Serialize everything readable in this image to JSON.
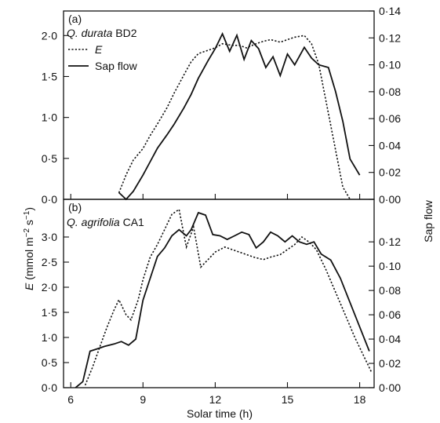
{
  "chart_data": [
    {
      "type": "line",
      "panel_label": "(a)",
      "site_label": "BD2",
      "species_label": "Q. durata",
      "legend": [
        "E",
        "Sap flow"
      ],
      "xlim": [
        5.7,
        18.6
      ],
      "ylim_left": [
        0,
        2.3
      ],
      "ylim_right": [
        0,
        0.14
      ],
      "left_ticks": [
        "0·0",
        "0·5",
        "1·0",
        "1·5",
        "2·0"
      ],
      "left_tick_values": [
        0,
        0.5,
        1.0,
        1.5,
        2.0
      ],
      "right_ticks": [
        "0·00",
        "0·02",
        "0·04",
        "0·06",
        "0·08",
        "0·10",
        "0·12",
        "0·14"
      ],
      "right_tick_values": [
        0,
        0.02,
        0.04,
        0.06,
        0.08,
        0.1,
        0.12,
        0.14
      ],
      "series": [
        {
          "name": "E",
          "axis": "left",
          "style": "dotted",
          "x": [
            8.0,
            8.3,
            8.6,
            9.0,
            9.3,
            9.6,
            10.0,
            10.3,
            10.7,
            11.0,
            11.3,
            11.7,
            12.0,
            12.3,
            12.7,
            13.0,
            13.3,
            13.7,
            14.0,
            14.3,
            14.7,
            15.0,
            15.3,
            15.7,
            16.0,
            16.3,
            16.7,
            17.0,
            17.3,
            17.6
          ],
          "y": [
            0.08,
            0.3,
            0.48,
            0.62,
            0.78,
            0.92,
            1.12,
            1.3,
            1.52,
            1.68,
            1.78,
            1.82,
            1.85,
            1.9,
            1.88,
            1.88,
            1.85,
            1.9,
            1.93,
            1.95,
            1.92,
            1.95,
            1.98,
            2.0,
            1.9,
            1.65,
            1.05,
            0.6,
            0.15,
            0.0
          ]
        },
        {
          "name": "Sap flow",
          "axis": "right",
          "style": "solid",
          "x": [
            8.0,
            8.3,
            8.6,
            9.0,
            9.3,
            9.6,
            10.0,
            10.3,
            10.7,
            11.0,
            11.3,
            11.7,
            12.0,
            12.3,
            12.6,
            12.9,
            13.2,
            13.5,
            13.8,
            14.1,
            14.4,
            14.7,
            15.0,
            15.3,
            15.7,
            16.0,
            16.3,
            16.7,
            17.0,
            17.3,
            17.6,
            18.0
          ],
          "y": [
            0.005,
            0.0,
            0.006,
            0.018,
            0.028,
            0.038,
            0.048,
            0.056,
            0.068,
            0.078,
            0.09,
            0.103,
            0.112,
            0.123,
            0.11,
            0.122,
            0.104,
            0.118,
            0.112,
            0.098,
            0.106,
            0.092,
            0.108,
            0.1,
            0.113,
            0.105,
            0.1,
            0.098,
            0.08,
            0.058,
            0.03,
            0.018
          ]
        }
      ]
    },
    {
      "type": "line",
      "panel_label": "(b)",
      "site_label": "CA1",
      "species_label": "Q. agrifolia",
      "xlim": [
        5.7,
        18.6
      ],
      "ylim_left": [
        0,
        3.75
      ],
      "ylim_right": [
        0,
        0.155
      ],
      "left_ticks": [
        "0·0",
        "0·5",
        "1·0",
        "1·5",
        "2·0",
        "2·5",
        "3·0"
      ],
      "left_tick_values": [
        0,
        0.5,
        1.0,
        1.5,
        2.0,
        2.5,
        3.0
      ],
      "right_ticks": [
        "0·00",
        "0·02",
        "0·04",
        "0·06",
        "0·08",
        "0·10",
        "0·12"
      ],
      "right_tick_values": [
        0,
        0.02,
        0.04,
        0.06,
        0.08,
        0.1,
        0.12
      ],
      "series": [
        {
          "name": "E",
          "axis": "left",
          "style": "dotted",
          "x": [
            6.6,
            6.9,
            7.2,
            7.5,
            7.8,
            8.0,
            8.3,
            8.5,
            8.8,
            9.0,
            9.3,
            9.6,
            9.9,
            10.2,
            10.5,
            10.8,
            11.1,
            11.4,
            11.7,
            12.0,
            12.4,
            12.7,
            13.0,
            13.3,
            13.6,
            14.0,
            14.3,
            14.7,
            15.0,
            15.3,
            15.6,
            15.9,
            16.2,
            16.6,
            17.0,
            17.4,
            17.8,
            18.2,
            18.5
          ],
          "y": [
            0.05,
            0.4,
            0.8,
            1.2,
            1.55,
            1.75,
            1.45,
            1.35,
            1.75,
            2.15,
            2.6,
            2.85,
            3.15,
            3.45,
            3.55,
            2.8,
            3.2,
            2.4,
            2.55,
            2.7,
            2.8,
            2.75,
            2.7,
            2.65,
            2.6,
            2.55,
            2.6,
            2.65,
            2.75,
            2.85,
            3.0,
            2.9,
            2.75,
            2.35,
            1.9,
            1.45,
            1.0,
            0.6,
            0.3
          ]
        },
        {
          "name": "Sap flow",
          "axis": "right",
          "style": "solid",
          "x": [
            6.2,
            6.5,
            6.8,
            7.1,
            7.4,
            7.8,
            8.1,
            8.4,
            8.7,
            9.0,
            9.3,
            9.6,
            9.9,
            10.2,
            10.5,
            10.8,
            11.0,
            11.3,
            11.6,
            11.9,
            12.2,
            12.5,
            12.8,
            13.1,
            13.4,
            13.7,
            14.0,
            14.3,
            14.6,
            14.9,
            15.2,
            15.5,
            15.8,
            16.1,
            16.4,
            16.8,
            17.2,
            17.6,
            18.0,
            18.4
          ],
          "y": [
            0.0,
            0.005,
            0.03,
            0.032,
            0.034,
            0.036,
            0.038,
            0.035,
            0.04,
            0.072,
            0.09,
            0.108,
            0.115,
            0.125,
            0.13,
            0.125,
            0.13,
            0.144,
            0.142,
            0.126,
            0.125,
            0.122,
            0.125,
            0.128,
            0.126,
            0.115,
            0.12,
            0.128,
            0.125,
            0.12,
            0.125,
            0.12,
            0.118,
            0.12,
            0.11,
            0.105,
            0.09,
            0.07,
            0.05,
            0.03
          ]
        }
      ]
    }
  ],
  "x_ticks": [
    "6",
    "9",
    "12",
    "15",
    "18"
  ],
  "x_tick_values": [
    6,
    9,
    12,
    15,
    18
  ],
  "xlabel": "Solar time (h)",
  "ylabel_left": "E (mmol m⁻² s⁻¹)",
  "ylabel_right": "Sap flow"
}
